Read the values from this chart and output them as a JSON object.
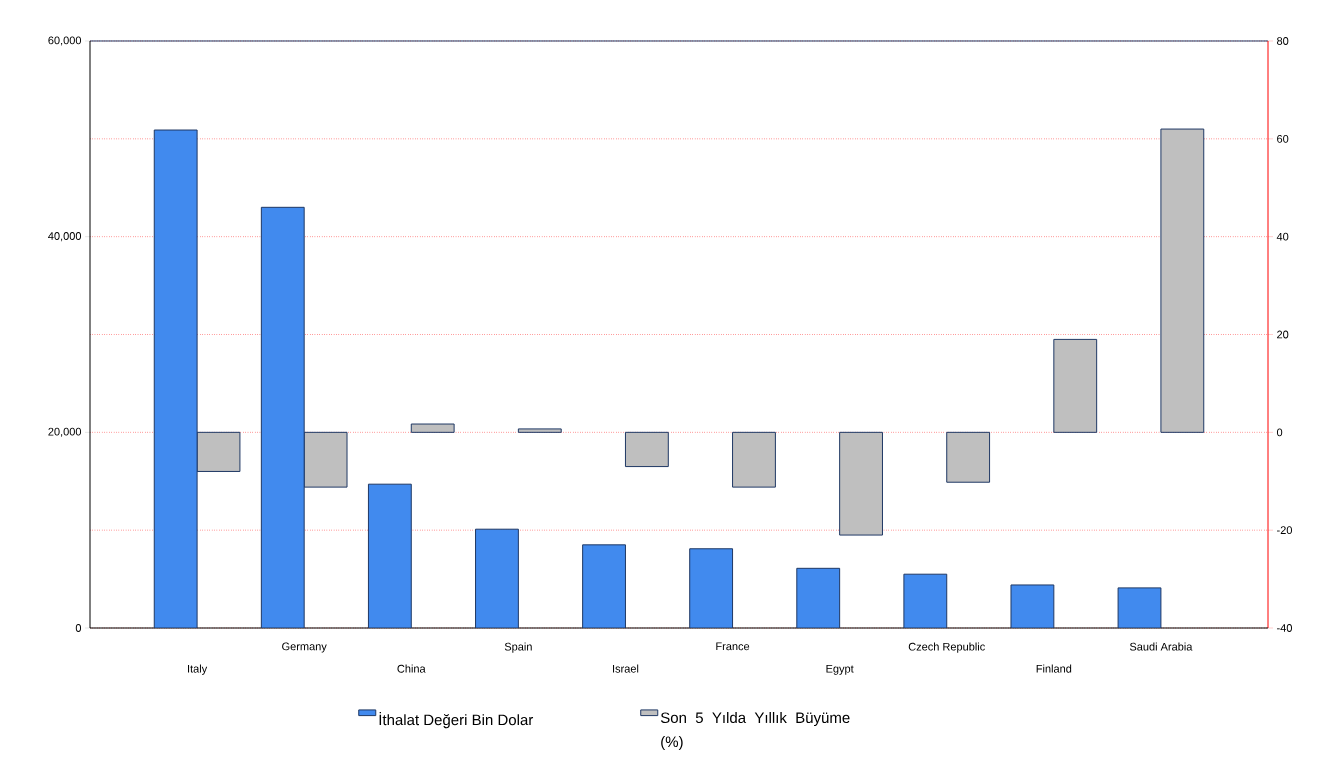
{
  "chart_data": {
    "type": "bar",
    "categories": [
      "Italy",
      "Germany",
      "China",
      "Spain",
      "Israel",
      "France",
      "Egypt",
      "Czech Republic",
      "Finland",
      "Saudi Arabia"
    ],
    "series": [
      {
        "name": "İthalat Değeri Bin Dolar",
        "color": "#418aee",
        "values": [
          50900,
          43000,
          14700,
          10100,
          8500,
          8100,
          6100,
          5500,
          4400,
          4100
        ]
      },
      {
        "name": "Son 5 Yılda Yıllık Büyüme (%)",
        "color": "#bfbfbf",
        "axis": "y2",
        "values": [
          -8,
          -11.2,
          1.7,
          0.7,
          -7,
          -11.2,
          -21,
          -10.2,
          19,
          62
        ]
      }
    ],
    "ylim": [
      0,
      60000
    ],
    "yticks": [
      {
        "value": 0,
        "label": "0"
      },
      {
        "value": 20000,
        "label": "20,000"
      },
      {
        "value": 40000,
        "label": "40,000"
      },
      {
        "value": 60000,
        "label": "60,000"
      }
    ],
    "y2lim": [
      -40,
      80
    ],
    "y2ticks": [
      -40,
      -20,
      0,
      20,
      40,
      60,
      80
    ],
    "grid": "y",
    "legend": "bottom"
  }
}
